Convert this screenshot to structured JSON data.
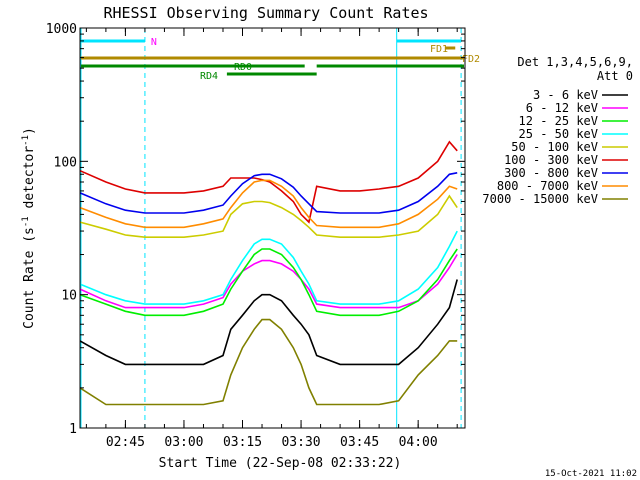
{
  "chart_data": {
    "type": "line",
    "title": "RHESSI Observing Summary Count Rates",
    "xlabel_prefix": "Start Time (22-Sep-08 02:33:22)",
    "ylabel": "Count Rate (s",
    "ylabel_sup1": "-1",
    "ylabel_mid": " detector",
    "ylabel_sup2": "-1",
    "ylabel_end": ")",
    "y_scale": "log",
    "ylim": [
      1,
      1000
    ],
    "xlim": [
      "02:33:22",
      "04:12:00"
    ],
    "x_ticks": [
      "02:45",
      "03:00",
      "03:15",
      "03:30",
      "03:45",
      "04:00"
    ],
    "y_ticks": [
      "1",
      "10",
      "100",
      "1000"
    ],
    "grid": false,
    "legend_header": [
      "Det 1,3,4,5,6,9,",
      "Att 0"
    ],
    "legend_placement": "right",
    "timestamp": "15-Oct-2021 11:02",
    "night_intervals": [
      [
        "02:33:22",
        "02:50:00"
      ],
      [
        "03:54:30",
        "04:11:00"
      ]
    ],
    "night_label": "N",
    "flags": [
      {
        "label": "FD1",
        "color": "#b08a00",
        "segments": [
          [
            "04:07:00",
            "04:09:30"
          ]
        ]
      },
      {
        "label": "FD2",
        "color": "#b08a00",
        "segments": [
          [
            "02:33:22",
            "04:12:00"
          ]
        ]
      },
      {
        "label": "RD0",
        "color": "#008800",
        "segments": [
          [
            "02:33:22",
            "03:34:00"
          ],
          [
            "03:34:00",
            "04:12:00"
          ]
        ]
      },
      {
        "label": "RD4",
        "color": "#008800",
        "segments": [
          [
            "03:11:00",
            "03:34:00"
          ]
        ]
      }
    ],
    "series": [
      {
        "name": "3 - 6 keV",
        "color": "#000000",
        "x": [
          "02:33:22",
          "02:40",
          "02:45",
          "02:50",
          "02:55",
          "03:00",
          "03:05",
          "03:10",
          "03:12",
          "03:15",
          "03:18",
          "03:20",
          "03:22",
          "03:25",
          "03:28",
          "03:30",
          "03:32",
          "03:34",
          "03:40",
          "03:45",
          "03:50",
          "03:55",
          "04:00",
          "04:05",
          "04:08",
          "04:10"
        ],
        "y": [
          4.5,
          3.5,
          3,
          3,
          3,
          3,
          3,
          3.5,
          5.5,
          7,
          9,
          10,
          10,
          9,
          7,
          6,
          5,
          3.5,
          3,
          3,
          3,
          3,
          4,
          6,
          8,
          13
        ]
      },
      {
        "name": "6 - 12 keV",
        "color": "#ff00ff",
        "x": [
          "02:33:22",
          "02:40",
          "02:45",
          "02:50",
          "02:55",
          "03:00",
          "03:05",
          "03:10",
          "03:12",
          "03:15",
          "03:18",
          "03:20",
          "03:22",
          "03:25",
          "03:28",
          "03:30",
          "03:32",
          "03:34",
          "03:40",
          "03:45",
          "03:50",
          "03:55",
          "04:00",
          "04:05",
          "04:08",
          "04:10"
        ],
        "y": [
          11,
          9,
          8,
          8,
          8,
          8,
          8.5,
          9.5,
          12,
          15,
          17,
          18,
          18,
          17,
          15,
          13,
          11,
          8.5,
          8,
          8,
          8,
          8,
          9,
          12,
          16,
          20
        ]
      },
      {
        "name": "12 - 25 keV",
        "color": "#00ee00",
        "x": [
          "02:33:22",
          "02:40",
          "02:45",
          "02:50",
          "02:55",
          "03:00",
          "03:05",
          "03:10",
          "03:12",
          "03:15",
          "03:18",
          "03:20",
          "03:22",
          "03:25",
          "03:28",
          "03:30",
          "03:32",
          "03:34",
          "03:40",
          "03:45",
          "03:50",
          "03:55",
          "04:00",
          "04:05",
          "04:08",
          "04:10"
        ],
        "y": [
          10,
          8.5,
          7.5,
          7,
          7,
          7,
          7.5,
          8.5,
          11,
          15,
          20,
          22,
          22,
          20,
          16,
          13,
          10,
          7.5,
          7,
          7,
          7,
          7.5,
          9,
          13,
          18,
          22
        ]
      },
      {
        "name": "25 - 50 keV",
        "color": "#00ffff",
        "x": [
          "02:33:22",
          "02:40",
          "02:45",
          "02:50",
          "02:55",
          "03:00",
          "03:05",
          "03:10",
          "03:12",
          "03:15",
          "03:18",
          "03:20",
          "03:22",
          "03:25",
          "03:28",
          "03:30",
          "03:32",
          "03:34",
          "03:40",
          "03:45",
          "03:50",
          "03:55",
          "04:00",
          "04:05",
          "04:08",
          "04:10"
        ],
        "y": [
          12,
          10,
          9,
          8.5,
          8.5,
          8.5,
          9,
          10,
          13,
          18,
          24,
          26,
          26,
          24,
          19,
          15,
          12,
          9,
          8.5,
          8.5,
          8.5,
          9,
          11,
          16,
          23,
          30
        ]
      },
      {
        "name": "50 - 100 keV",
        "color": "#cccc00",
        "x": [
          "02:33:22",
          "02:40",
          "02:45",
          "02:50",
          "02:55",
          "03:00",
          "03:05",
          "03:10",
          "03:12",
          "03:15",
          "03:18",
          "03:20",
          "03:22",
          "03:25",
          "03:28",
          "03:30",
          "03:32",
          "03:34",
          "03:40",
          "03:45",
          "03:50",
          "03:55",
          "04:00",
          "04:05",
          "04:08",
          "04:10"
        ],
        "y": [
          35,
          31,
          28,
          27,
          27,
          27,
          28,
          30,
          40,
          48,
          50,
          50,
          49,
          45,
          40,
          36,
          32,
          28,
          27,
          27,
          27,
          28,
          30,
          40,
          55,
          45
        ]
      },
      {
        "name": "100 - 300 keV",
        "color": "#dd0000",
        "x": [
          "02:33:22",
          "02:40",
          "02:45",
          "02:50",
          "02:55",
          "03:00",
          "03:05",
          "03:10",
          "03:12",
          "03:15",
          "03:18",
          "03:20",
          "03:22",
          "03:25",
          "03:28",
          "03:30",
          "03:32",
          "03:34",
          "03:40",
          "03:45",
          "03:50",
          "03:55",
          "04:00",
          "04:05",
          "04:08",
          "04:10"
        ],
        "y": [
          85,
          70,
          62,
          58,
          58,
          58,
          60,
          65,
          75,
          75,
          75,
          73,
          70,
          60,
          50,
          40,
          35,
          65,
          60,
          60,
          62,
          65,
          75,
          100,
          140,
          120
        ]
      },
      {
        "name": "300 - 800 keV",
        "color": "#0000ee",
        "x": [
          "02:33:22",
          "02:40",
          "02:45",
          "02:50",
          "02:55",
          "03:00",
          "03:05",
          "03:10",
          "03:12",
          "03:15",
          "03:18",
          "03:20",
          "03:22",
          "03:25",
          "03:28",
          "03:30",
          "03:32",
          "03:34",
          "03:40",
          "03:45",
          "03:50",
          "03:55",
          "04:00",
          "04:05",
          "04:08",
          "04:10"
        ],
        "y": [
          58,
          48,
          43,
          41,
          41,
          41,
          43,
          47,
          55,
          68,
          78,
          80,
          80,
          74,
          64,
          55,
          48,
          42,
          41,
          41,
          41,
          43,
          50,
          65,
          80,
          82
        ]
      },
      {
        "name": "800 - 7000 keV",
        "color": "#ff8c00",
        "x": [
          "02:33:22",
          "02:40",
          "02:45",
          "02:50",
          "02:55",
          "03:00",
          "03:05",
          "03:10",
          "03:12",
          "03:15",
          "03:18",
          "03:20",
          "03:22",
          "03:25",
          "03:28",
          "03:30",
          "03:32",
          "03:34",
          "03:40",
          "03:45",
          "03:50",
          "03:55",
          "04:00",
          "04:05",
          "04:08",
          "04:10"
        ],
        "y": [
          45,
          38,
          34,
          32,
          32,
          32,
          34,
          37,
          45,
          58,
          70,
          72,
          72,
          65,
          55,
          45,
          38,
          33,
          32,
          32,
          32,
          34,
          40,
          52,
          65,
          62
        ]
      },
      {
        "name": "7000 - 15000 keV",
        "color": "#808000",
        "x": [
          "02:33:22",
          "02:40",
          "02:45",
          "02:50",
          "02:55",
          "03:00",
          "03:05",
          "03:10",
          "03:12",
          "03:15",
          "03:18",
          "03:20",
          "03:22",
          "03:25",
          "03:28",
          "03:30",
          "03:32",
          "03:34",
          "03:40",
          "03:45",
          "03:50",
          "03:55",
          "04:00",
          "04:05",
          "04:08",
          "04:10"
        ],
        "y": [
          2,
          1.5,
          1.5,
          1.5,
          1.5,
          1.5,
          1.5,
          1.6,
          2.5,
          4,
          5.5,
          6.5,
          6.5,
          5.5,
          4,
          3,
          2,
          1.5,
          1.5,
          1.5,
          1.5,
          1.6,
          2.5,
          3.5,
          4.5,
          4.5
        ]
      }
    ]
  }
}
